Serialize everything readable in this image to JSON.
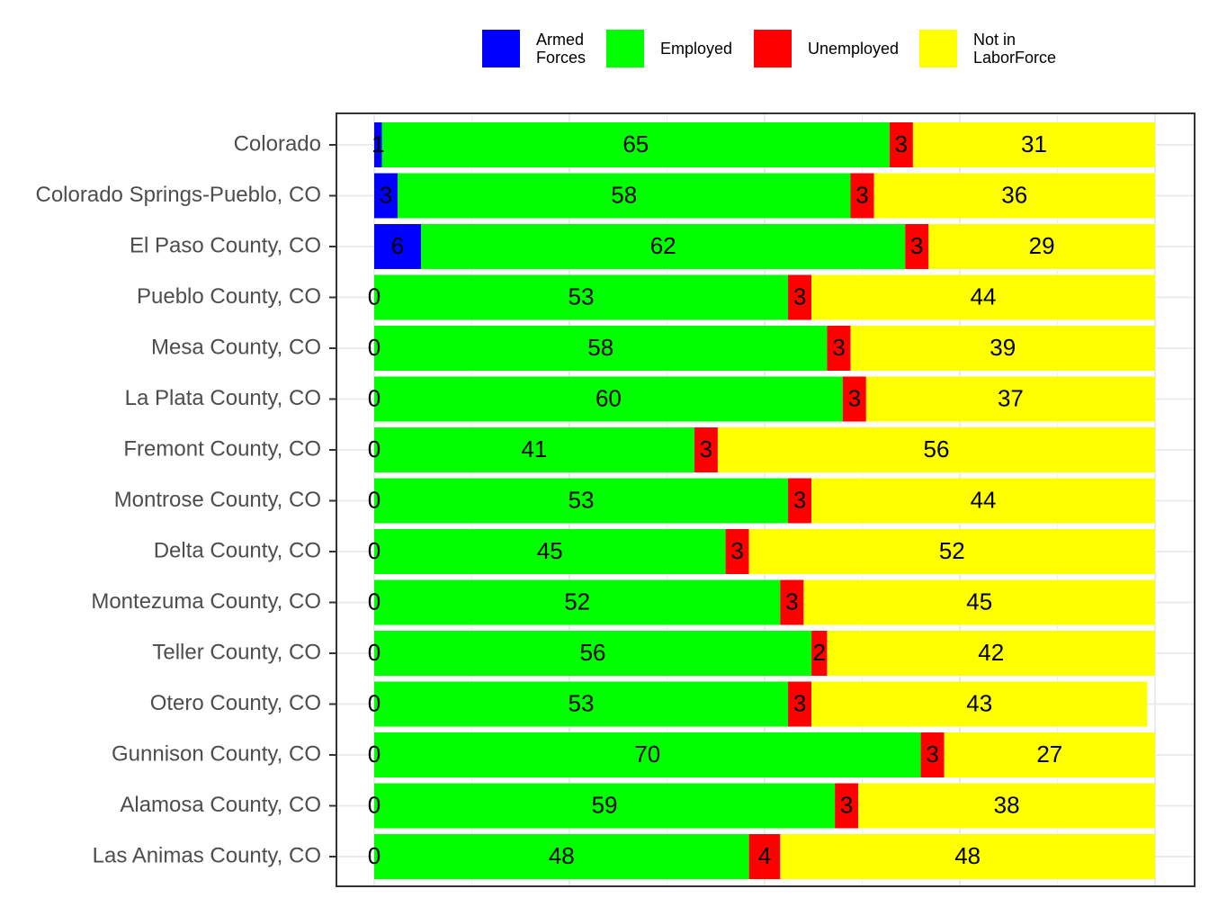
{
  "chart_data": {
    "type": "stacked-bar-horizontal",
    "categories": [
      "Colorado",
      "Colorado Springs-Pueblo, CO",
      "El Paso County, CO",
      "Pueblo County, CO",
      "Mesa County, CO",
      "La Plata County, CO",
      "Fremont County, CO",
      "Montrose County, CO",
      "Delta County, CO",
      "Montezuma County, CO",
      "Teller County, CO",
      "Otero County, CO",
      "Gunnison County, CO",
      "Alamosa County, CO",
      "Las Animas County, CO"
    ],
    "series": [
      {
        "name": "Armed Forces",
        "color": "#0000ff",
        "values": [
          1,
          3,
          6,
          0,
          0,
          0,
          0,
          0,
          0,
          0,
          0,
          0,
          0,
          0,
          0
        ]
      },
      {
        "name": "Employed",
        "color": "#00ff00",
        "values": [
          65,
          58,
          62,
          53,
          58,
          60,
          41,
          53,
          45,
          52,
          56,
          53,
          70,
          59,
          48
        ]
      },
      {
        "name": "Unemployed",
        "color": "#ff0000",
        "values": [
          3,
          3,
          3,
          3,
          3,
          3,
          3,
          3,
          3,
          3,
          2,
          3,
          3,
          3,
          4
        ]
      },
      {
        "name": "Not in LaborForce",
        "color": "#ffff00",
        "values": [
          31,
          36,
          29,
          44,
          39,
          37,
          56,
          44,
          52,
          45,
          42,
          43,
          27,
          38,
          48
        ]
      }
    ],
    "xlim": [
      0,
      100
    ],
    "xticks": [
      0,
      25,
      50,
      75,
      100
    ],
    "grid": true,
    "legend": "top"
  }
}
